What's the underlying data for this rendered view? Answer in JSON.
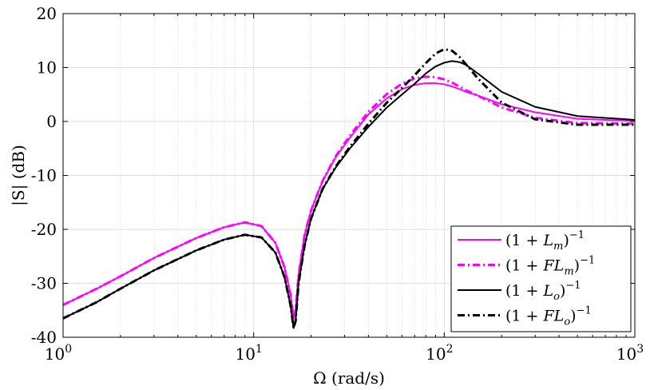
{
  "chart_data": {
    "type": "line",
    "title": "",
    "xlabel": "Ω (rad/s)",
    "ylabel": "|S| (dB)",
    "xscale": "log",
    "xlim": [
      1,
      1000
    ],
    "ylim": [
      -40,
      20
    ],
    "grid": true,
    "legend_location": "bottom-right",
    "x_ticks": [
      {
        "value": 1,
        "base": "10",
        "exp": "0"
      },
      {
        "value": 10,
        "base": "10",
        "exp": "1"
      },
      {
        "value": 100,
        "base": "10",
        "exp": "2"
      },
      {
        "value": 1000,
        "base": "10",
        "exp": "3"
      }
    ],
    "y_ticks": [
      {
        "value": -40,
        "label": "-40"
      },
      {
        "value": -30,
        "label": "-30"
      },
      {
        "value": -20,
        "label": "-20"
      },
      {
        "value": -10,
        "label": "-10"
      },
      {
        "value": 0,
        "label": "0"
      },
      {
        "value": 10,
        "label": "10"
      },
      {
        "value": 20,
        "label": "20"
      }
    ],
    "x": [
      1,
      1.5,
      2,
      3,
      5,
      7,
      9,
      11,
      13,
      14.5,
      15.6,
      16.2,
      16.6,
      17.2,
      18.5,
      20,
      23,
      27,
      32,
      40,
      50,
      60,
      70,
      80,
      90,
      100,
      110,
      120,
      130,
      150,
      200,
      300,
      500,
      1000
    ],
    "series": [
      {
        "name": "(1+L_m)^-1",
        "color": "#ff00ff",
        "dash": "solid",
        "width": 2,
        "y": [
          -34,
          -31,
          -28.7,
          -25.3,
          -21.6,
          -19.6,
          -18.7,
          -19.4,
          -22.5,
          -27,
          -32,
          -36.5,
          -35,
          -28.5,
          -21,
          -16.5,
          -11,
          -6.6,
          -3,
          1.3,
          4.3,
          6,
          6.8,
          7.1,
          7.1,
          6.9,
          6.5,
          6,
          5.5,
          4.8,
          3.2,
          1.7,
          0.5,
          0.1
        ]
      },
      {
        "name": "(1+FL_m)^-1",
        "color": "#ff00ff",
        "dash": "dashdot",
        "width": 3,
        "y": [
          -34,
          -31,
          -28.7,
          -25.3,
          -21.6,
          -19.6,
          -18.7,
          -19.4,
          -22.5,
          -27,
          -32,
          -36.5,
          -35,
          -28.5,
          -21,
          -16.5,
          -11,
          -6.4,
          -2.6,
          1.8,
          5.1,
          7,
          8,
          8.3,
          8.2,
          7.8,
          7.2,
          6.5,
          5.8,
          4.8,
          2.6,
          0.7,
          -0.3,
          -0.4
        ]
      },
      {
        "name": "(1+L_o)^-1",
        "color": "#000000",
        "dash": "solid",
        "width": 2,
        "y": [
          -36.5,
          -33.5,
          -31,
          -27.6,
          -23.9,
          -21.9,
          -21,
          -21.5,
          -24.3,
          -28.8,
          -34,
          -38.3,
          -37,
          -30,
          -23,
          -18,
          -12.5,
          -8.5,
          -5,
          -1,
          2.6,
          5,
          7,
          8.9,
          10.2,
          10.9,
          11.2,
          11,
          10.5,
          8.9,
          5.5,
          2.7,
          1,
          0.3
        ]
      },
      {
        "name": "(1+FL_o)^-1",
        "color": "#000000",
        "dash": "dashdot",
        "width": 3,
        "y": [
          -36.5,
          -33.5,
          -31,
          -27.6,
          -23.9,
          -21.9,
          -21,
          -21.5,
          -24.3,
          -28.8,
          -34,
          -38.3,
          -37,
          -30,
          -23,
          -18,
          -12.5,
          -8.3,
          -4.7,
          -0.4,
          3.5,
          6.2,
          8.6,
          10.8,
          12.6,
          13.4,
          13.1,
          12,
          10.6,
          8,
          3.5,
          0.4,
          -0.6,
          -0.6
        ]
      }
    ],
    "legend": [
      {
        "base": "(1 + ",
        "main": "L",
        "sub": "m",
        "close": ")",
        "sup": "−1"
      },
      {
        "base": "(1 + ",
        "main": "FL",
        "sub": "m",
        "close": ")",
        "sup": "−1"
      },
      {
        "base": "(1 + ",
        "main": "L",
        "sub": "o",
        "close": ")",
        "sup": "−1"
      },
      {
        "base": "(1 + ",
        "main": "FL",
        "sub": "o",
        "close": ")",
        "sup": "−1"
      }
    ]
  }
}
